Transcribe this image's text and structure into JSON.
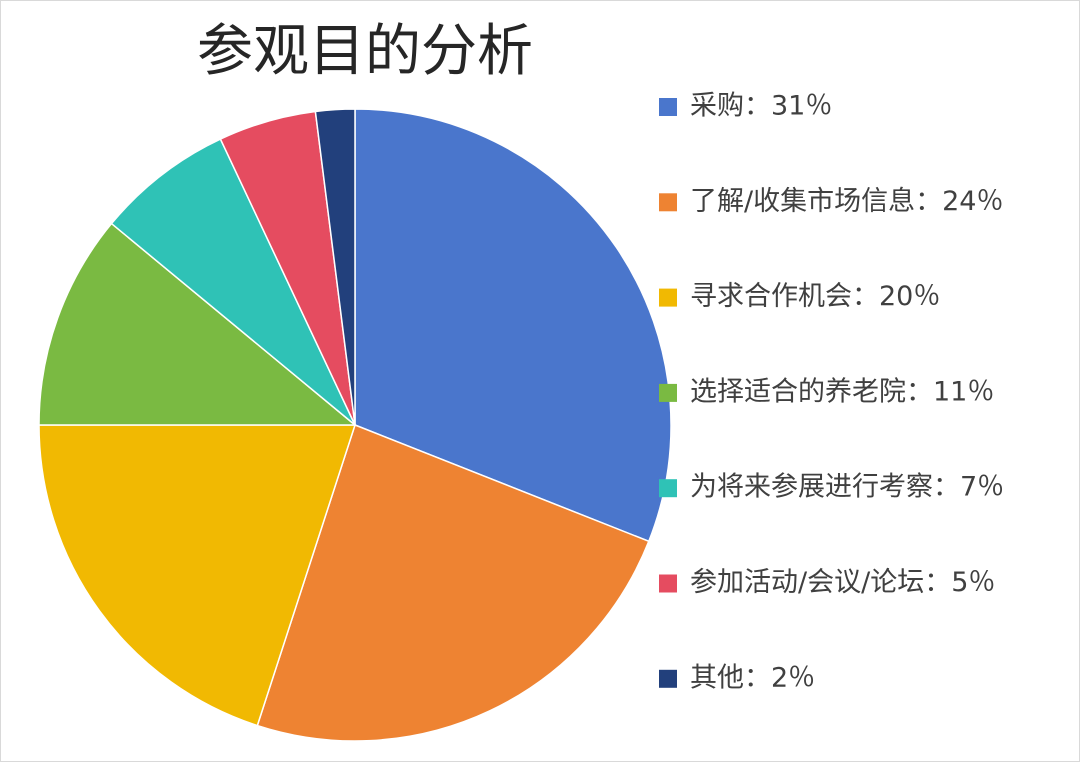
{
  "chart_data": {
    "type": "pie",
    "title": "参观目的分析",
    "categories": [
      "采购：31％",
      "了解/收集市场信息：24％",
      "寻求合作机会：20％",
      "选择适合的养老院：11％",
      "为将来参展进行考察：7％",
      "参加活动/会议/论坛：5％",
      "其他：2％"
    ],
    "values": [
      31,
      24,
      20,
      11,
      7,
      5,
      2
    ],
    "colors": [
      "#4a76cc",
      "#ee8332",
      "#f1b902",
      "#7aba42",
      "#2fc2b6",
      "#e54c60",
      "#22407c"
    ],
    "legend": "right"
  }
}
